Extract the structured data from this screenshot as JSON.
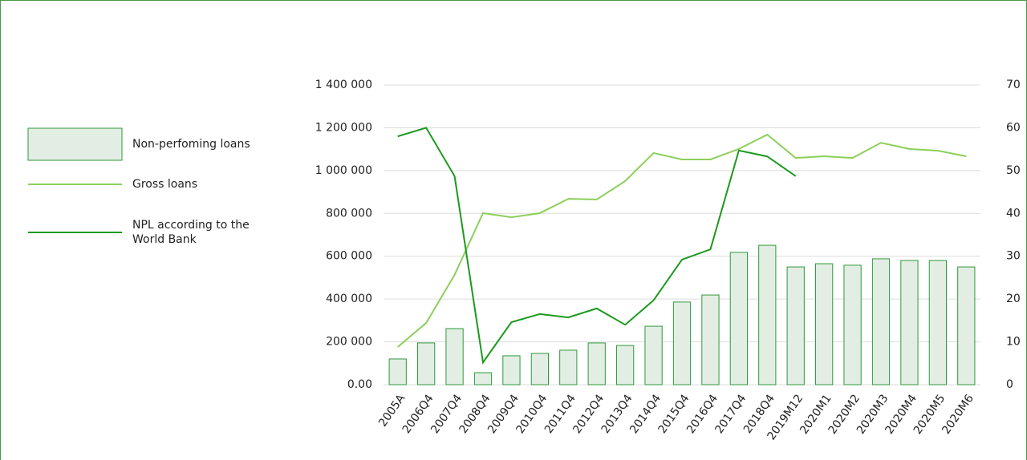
{
  "chart_data": {
    "type": "bar-line",
    "categories": [
      "2005A",
      "2006Q4",
      "2007Q4",
      "2008Q4",
      "2009Q4",
      "2010Q4",
      "2011Q4",
      "2012Q4",
      "2013Q4",
      "2014Q4",
      "2015Q4",
      "2016Q4",
      "2017Q4",
      "2018Q4",
      "2019M12",
      "2020M1",
      "2020M2",
      "2020M3",
      "2020M4",
      "2020M5",
      "2020M6"
    ],
    "series": [
      {
        "name": "Non-perfoming loans",
        "type": "bar",
        "color": "#e2ede3",
        "edge": "#2e9a3a",
        "values": [
          120000,
          195000,
          262000,
          56000,
          135000,
          146000,
          161000,
          195000,
          183000,
          273000,
          386000,
          419000,
          618000,
          651000,
          550000,
          565000,
          558000,
          588000,
          580000,
          580000,
          550000
        ]
      },
      {
        "name": "Gross loans",
        "type": "line",
        "color": "#8ccf5a",
        "values": [
          176000,
          288000,
          513000,
          801000,
          782000,
          801000,
          868000,
          865000,
          951000,
          1082000,
          1052000,
          1052000,
          1101000,
          1168000,
          1059000,
          1067000,
          1059000,
          1130000,
          1101000,
          1093000,
          1067000
        ]
      },
      {
        "name": "NPL according to the World Bank",
        "type": "line",
        "color": "#1a9a1e",
        "axis": "y2",
        "values": [
          58,
          60,
          48.7,
          5.2,
          14.6,
          16.5,
          15.7,
          17.8,
          14,
          19.7,
          29.2,
          31.6,
          54.7,
          53.3,
          48.7,
          null,
          null,
          null,
          null,
          null,
          null
        ]
      }
    ],
    "ylim": [
      0,
      1400000
    ],
    "yticks": [
      {
        "value": 0,
        "label": "0.00"
      },
      {
        "value": 200000,
        "label": "200 000"
      },
      {
        "value": 400000,
        "label": "400 000"
      },
      {
        "value": 600000,
        "label": "600 000"
      },
      {
        "value": 800000,
        "label": "800 000"
      },
      {
        "value": 1000000,
        "label": "1 000 000"
      },
      {
        "value": 1200000,
        "label": "1 200 000"
      },
      {
        "value": 1400000,
        "label": "1 400 000"
      }
    ],
    "y2lim": [
      0,
      70
    ],
    "y2ticks": [
      0,
      10,
      20,
      30,
      40,
      50,
      60,
      70
    ],
    "grid": true,
    "legend": "left"
  }
}
